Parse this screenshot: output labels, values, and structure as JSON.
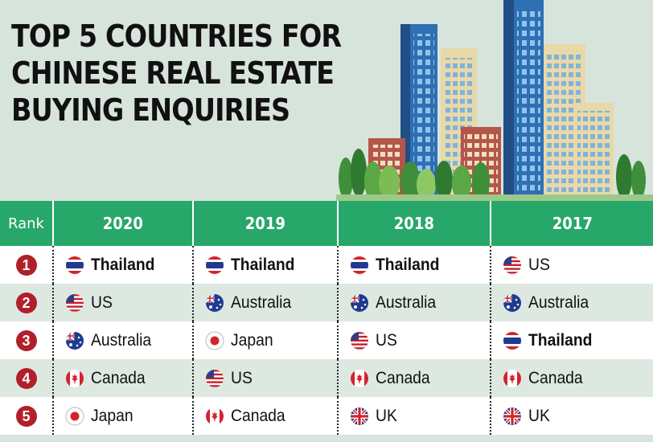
{
  "title": {
    "line1": "TOP 5 COUNTRIES FOR",
    "line2": "CHINESE REAL ESTATE",
    "line3": "BUYING ENQUIRIES"
  },
  "table": {
    "rank_header": "Rank",
    "years": [
      "2020",
      "2019",
      "2018",
      "2017"
    ],
    "ranks": [
      "1",
      "2",
      "3",
      "4",
      "5"
    ],
    "rows": [
      [
        {
          "name": "Thailand",
          "flag": "thailand-flag",
          "bold": true
        },
        {
          "name": "Thailand",
          "flag": "thailand-flag",
          "bold": true
        },
        {
          "name": "Thailand",
          "flag": "thailand-flag",
          "bold": true
        },
        {
          "name": "US",
          "flag": "us-flag",
          "bold": false
        }
      ],
      [
        {
          "name": "US",
          "flag": "us-flag",
          "bold": false
        },
        {
          "name": "Australia",
          "flag": "australia-flag",
          "bold": false
        },
        {
          "name": "Australia",
          "flag": "australia-flag",
          "bold": false
        },
        {
          "name": "Australia",
          "flag": "australia-flag",
          "bold": false
        }
      ],
      [
        {
          "name": "Australia",
          "flag": "australia-flag",
          "bold": false
        },
        {
          "name": "Japan",
          "flag": "japan-flag",
          "bold": false
        },
        {
          "name": "US",
          "flag": "us-flag",
          "bold": false
        },
        {
          "name": "Thailand",
          "flag": "thailand-flag",
          "bold": true
        }
      ],
      [
        {
          "name": "Canada",
          "flag": "canada-flag",
          "bold": false
        },
        {
          "name": "US",
          "flag": "us-flag",
          "bold": false
        },
        {
          "name": "Canada",
          "flag": "canada-flag",
          "bold": false
        },
        {
          "name": "Canada",
          "flag": "canada-flag",
          "bold": false
        }
      ],
      [
        {
          "name": "Japan",
          "flag": "japan-flag",
          "bold": false
        },
        {
          "name": "Canada",
          "flag": "canada-flag",
          "bold": false
        },
        {
          "name": "UK",
          "flag": "uk-flag",
          "bold": false
        },
        {
          "name": "UK",
          "flag": "uk-flag",
          "bold": false
        }
      ]
    ]
  },
  "chart_data": {
    "type": "table",
    "title": "TOP 5 COUNTRIES FOR CHINESE REAL ESTATE BUYING ENQUIRIES",
    "columns": [
      "Rank",
      "2020",
      "2019",
      "2018",
      "2017"
    ],
    "rows": [
      [
        "1",
        "Thailand",
        "Thailand",
        "Thailand",
        "US"
      ],
      [
        "2",
        "US",
        "Australia",
        "Australia",
        "Australia"
      ],
      [
        "3",
        "Australia",
        "Japan",
        "US",
        "Thailand"
      ],
      [
        "4",
        "Canada",
        "US",
        "Canada",
        "Canada"
      ],
      [
        "5",
        "Japan",
        "Canada",
        "UK",
        "UK"
      ]
    ]
  },
  "colors": {
    "background": "#d7e4dc",
    "header_green": "#27a76a",
    "rank_badge": "#b01f2a"
  }
}
